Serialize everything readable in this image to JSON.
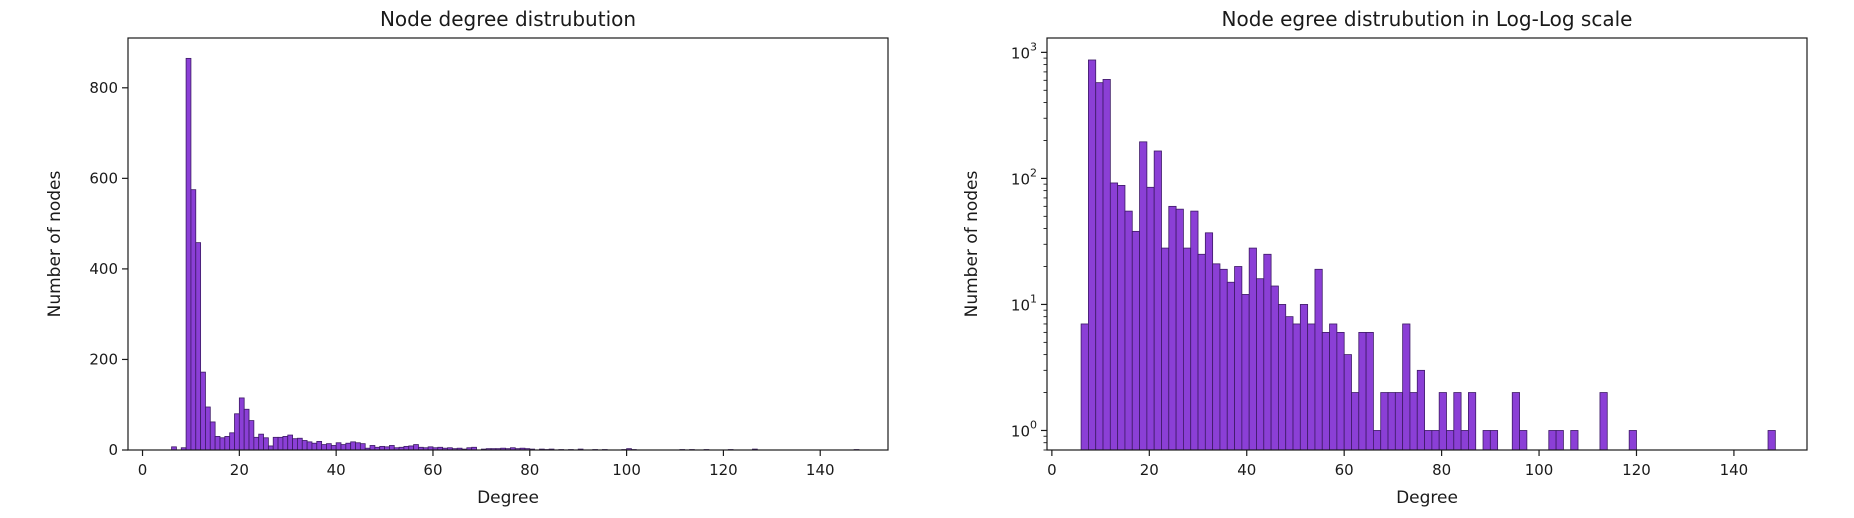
{
  "chart_data": [
    {
      "type": "bar",
      "title": "Node degree distrubution",
      "xlabel": "Degree",
      "ylabel": "Number of nodes",
      "xlim": [
        -3,
        154
      ],
      "ylim": [
        0,
        910
      ],
      "xticks": [
        0,
        20,
        40,
        60,
        80,
        100,
        120,
        140
      ],
      "yticks": [
        0,
        200,
        400,
        600,
        800
      ],
      "bin_width": 1,
      "bar_color": "#8b3fd6",
      "edge_color": "#3d1a66",
      "bars": [
        {
          "x": 6,
          "y": 7
        },
        {
          "x": 8,
          "y": 5
        },
        {
          "x": 9,
          "y": 865
        },
        {
          "x": 10,
          "y": 575
        },
        {
          "x": 11,
          "y": 458
        },
        {
          "x": 12,
          "y": 172
        },
        {
          "x": 13,
          "y": 95
        },
        {
          "x": 14,
          "y": 62
        },
        {
          "x": 15,
          "y": 30
        },
        {
          "x": 16,
          "y": 27
        },
        {
          "x": 17,
          "y": 30
        },
        {
          "x": 18,
          "y": 38
        },
        {
          "x": 19,
          "y": 80
        },
        {
          "x": 20,
          "y": 115
        },
        {
          "x": 21,
          "y": 90
        },
        {
          "x": 22,
          "y": 65
        },
        {
          "x": 23,
          "y": 28
        },
        {
          "x": 24,
          "y": 35
        },
        {
          "x": 25,
          "y": 27
        },
        {
          "x": 26,
          "y": 9
        },
        {
          "x": 27,
          "y": 28
        },
        {
          "x": 28,
          "y": 28
        },
        {
          "x": 29,
          "y": 30
        },
        {
          "x": 30,
          "y": 33
        },
        {
          "x": 31,
          "y": 25
        },
        {
          "x": 32,
          "y": 26
        },
        {
          "x": 33,
          "y": 21
        },
        {
          "x": 34,
          "y": 18
        },
        {
          "x": 35,
          "y": 15
        },
        {
          "x": 36,
          "y": 19
        },
        {
          "x": 37,
          "y": 12
        },
        {
          "x": 38,
          "y": 14
        },
        {
          "x": 39,
          "y": 10
        },
        {
          "x": 40,
          "y": 16
        },
        {
          "x": 41,
          "y": 12
        },
        {
          "x": 42,
          "y": 15
        },
        {
          "x": 43,
          "y": 18
        },
        {
          "x": 44,
          "y": 16
        },
        {
          "x": 45,
          "y": 14
        },
        {
          "x": 46,
          "y": 4
        },
        {
          "x": 47,
          "y": 10
        },
        {
          "x": 48,
          "y": 6
        },
        {
          "x": 49,
          "y": 8
        },
        {
          "x": 50,
          "y": 7
        },
        {
          "x": 51,
          "y": 10
        },
        {
          "x": 52,
          "y": 5
        },
        {
          "x": 53,
          "y": 6
        },
        {
          "x": 54,
          "y": 8
        },
        {
          "x": 55,
          "y": 9
        },
        {
          "x": 56,
          "y": 12
        },
        {
          "x": 57,
          "y": 6
        },
        {
          "x": 58,
          "y": 5
        },
        {
          "x": 59,
          "y": 7
        },
        {
          "x": 60,
          "y": 5
        },
        {
          "x": 61,
          "y": 6
        },
        {
          "x": 62,
          "y": 4
        },
        {
          "x": 63,
          "y": 5
        },
        {
          "x": 64,
          "y": 3
        },
        {
          "x": 65,
          "y": 4
        },
        {
          "x": 66,
          "y": 2
        },
        {
          "x": 67,
          "y": 5
        },
        {
          "x": 68,
          "y": 6
        },
        {
          "x": 70,
          "y": 2
        },
        {
          "x": 71,
          "y": 3
        },
        {
          "x": 72,
          "y": 3
        },
        {
          "x": 73,
          "y": 3
        },
        {
          "x": 74,
          "y": 4
        },
        {
          "x": 75,
          "y": 3
        },
        {
          "x": 76,
          "y": 5
        },
        {
          "x": 77,
          "y": 3
        },
        {
          "x": 78,
          "y": 4
        },
        {
          "x": 79,
          "y": 3
        },
        {
          "x": 80,
          "y": 2
        },
        {
          "x": 82,
          "y": 2
        },
        {
          "x": 83,
          "y": 1
        },
        {
          "x": 84,
          "y": 2
        },
        {
          "x": 86,
          "y": 1
        },
        {
          "x": 88,
          "y": 1
        },
        {
          "x": 90,
          "y": 2
        },
        {
          "x": 93,
          "y": 1
        },
        {
          "x": 95,
          "y": 1
        },
        {
          "x": 99,
          "y": 1
        },
        {
          "x": 100,
          "y": 3
        },
        {
          "x": 101,
          "y": 1
        },
        {
          "x": 111,
          "y": 1
        },
        {
          "x": 113,
          "y": 1
        },
        {
          "x": 116,
          "y": 1
        },
        {
          "x": 121,
          "y": 1
        },
        {
          "x": 126,
          "y": 2
        },
        {
          "x": 147,
          "y": 1
        }
      ]
    },
    {
      "type": "bar",
      "title": "Node egree distrubution in Log-Log scale",
      "xlabel": "Degree",
      "ylabel": "Number of nodes",
      "y_scale": "log",
      "xlim": [
        -1,
        155
      ],
      "ylim": [
        0.7,
        1300
      ],
      "xticks": [
        0,
        20,
        40,
        60,
        80,
        100,
        120,
        140
      ],
      "yticks": [
        {
          "value": 1,
          "base": "10",
          "exp": "0"
        },
        {
          "value": 10,
          "base": "10",
          "exp": "1"
        },
        {
          "value": 100,
          "base": "10",
          "exp": "2"
        },
        {
          "value": 1000,
          "base": "10",
          "exp": "3"
        }
      ],
      "bin_width": 1.5,
      "bar_color": "#8b3fd6",
      "edge_color": "#3d1a66",
      "bars": [
        {
          "x": 6,
          "y": 7
        },
        {
          "x": 7.5,
          "y": 870
        },
        {
          "x": 9,
          "y": 575
        },
        {
          "x": 10.5,
          "y": 610
        },
        {
          "x": 12,
          "y": 92
        },
        {
          "x": 13.5,
          "y": 88
        },
        {
          "x": 15,
          "y": 55
        },
        {
          "x": 16.5,
          "y": 38
        },
        {
          "x": 18,
          "y": 195
        },
        {
          "x": 19.5,
          "y": 85
        },
        {
          "x": 21,
          "y": 165
        },
        {
          "x": 22.5,
          "y": 28
        },
        {
          "x": 24,
          "y": 60
        },
        {
          "x": 25.5,
          "y": 57
        },
        {
          "x": 27,
          "y": 28
        },
        {
          "x": 28.5,
          "y": 55
        },
        {
          "x": 30,
          "y": 25
        },
        {
          "x": 31.5,
          "y": 37
        },
        {
          "x": 33,
          "y": 21
        },
        {
          "x": 34.5,
          "y": 19
        },
        {
          "x": 36,
          "y": 15
        },
        {
          "x": 37.5,
          "y": 20
        },
        {
          "x": 39,
          "y": 12
        },
        {
          "x": 40.5,
          "y": 28
        },
        {
          "x": 42,
          "y": 16
        },
        {
          "x": 43.5,
          "y": 25
        },
        {
          "x": 45,
          "y": 14
        },
        {
          "x": 46.5,
          "y": 10
        },
        {
          "x": 48,
          "y": 8
        },
        {
          "x": 49.5,
          "y": 7
        },
        {
          "x": 51,
          "y": 10
        },
        {
          "x": 52.5,
          "y": 7
        },
        {
          "x": 54,
          "y": 19
        },
        {
          "x": 55.5,
          "y": 6
        },
        {
          "x": 57,
          "y": 7
        },
        {
          "x": 58.5,
          "y": 6
        },
        {
          "x": 60,
          "y": 4
        },
        {
          "x": 61.5,
          "y": 2
        },
        {
          "x": 63,
          "y": 6
        },
        {
          "x": 64.5,
          "y": 6
        },
        {
          "x": 66,
          "y": 1
        },
        {
          "x": 67.5,
          "y": 2
        },
        {
          "x": 69,
          "y": 2
        },
        {
          "x": 70.5,
          "y": 2
        },
        {
          "x": 72,
          "y": 7
        },
        {
          "x": 73.5,
          "y": 2
        },
        {
          "x": 75,
          "y": 3
        },
        {
          "x": 76.5,
          "y": 1
        },
        {
          "x": 78,
          "y": 1
        },
        {
          "x": 79.5,
          "y": 2
        },
        {
          "x": 81,
          "y": 1
        },
        {
          "x": 82.5,
          "y": 2
        },
        {
          "x": 84,
          "y": 1
        },
        {
          "x": 85.5,
          "y": 2
        },
        {
          "x": 88.5,
          "y": 1
        },
        {
          "x": 90,
          "y": 1
        },
        {
          "x": 94.5,
          "y": 2
        },
        {
          "x": 96,
          "y": 1
        },
        {
          "x": 102,
          "y": 1
        },
        {
          "x": 103.5,
          "y": 1
        },
        {
          "x": 106.5,
          "y": 1
        },
        {
          "x": 112.5,
          "y": 2
        },
        {
          "x": 118.5,
          "y": 1
        },
        {
          "x": 147,
          "y": 1
        }
      ]
    }
  ]
}
